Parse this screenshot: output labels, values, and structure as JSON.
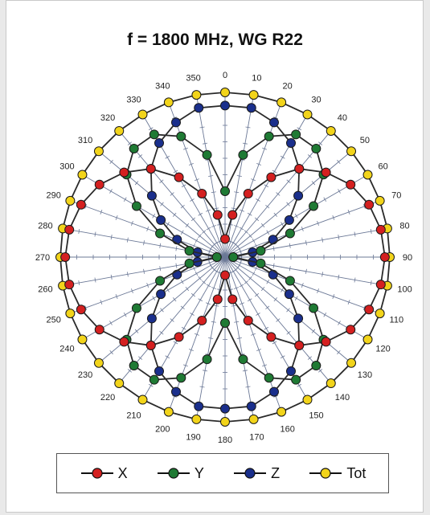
{
  "chart_data": {
    "type": "polar",
    "title": "f = 1800 MHz, WG R22",
    "angular_axis": {
      "unit": "degrees",
      "direction": "clockwise",
      "zero_at": "top",
      "tick_labels": [
        "0",
        "10",
        "20",
        "30",
        "40",
        "50",
        "60",
        "70",
        "80",
        "90",
        "100",
        "110",
        "120",
        "130",
        "140",
        "150",
        "160",
        "170",
        "180",
        "190",
        "200",
        "210",
        "220",
        "230",
        "240",
        "250",
        "260",
        "270",
        "280",
        "290",
        "300",
        "310",
        "320",
        "330",
        "340",
        "350"
      ]
    },
    "radial_grid": "on",
    "legend_position": "bottom",
    "series": [
      {
        "name": "X",
        "color": "#d42020",
        "angles": [
          0,
          10,
          20,
          30,
          40,
          50,
          60,
          70,
          80,
          90,
          100,
          110,
          120,
          130,
          140,
          150,
          160,
          170,
          180,
          190,
          200,
          210,
          220,
          230,
          240,
          250,
          260,
          270,
          280,
          290,
          300,
          310,
          320,
          330,
          340,
          350
        ],
        "values": [
          0.11,
          0.26,
          0.41,
          0.56,
          0.7,
          0.8,
          0.88,
          0.93,
          0.96,
          0.97,
          0.96,
          0.93,
          0.88,
          0.8,
          0.7,
          0.56,
          0.41,
          0.26,
          0.11,
          0.26,
          0.41,
          0.56,
          0.7,
          0.8,
          0.88,
          0.93,
          0.96,
          0.97,
          0.96,
          0.93,
          0.88,
          0.8,
          0.7,
          0.56,
          0.41,
          0.26
        ]
      },
      {
        "name": "Y",
        "color": "#1f7a34",
        "angles": [
          0,
          10,
          20,
          30,
          40,
          50,
          60,
          70,
          80,
          90,
          100,
          110,
          120,
          130,
          140,
          150,
          160,
          170,
          180,
          190,
          200,
          210,
          220,
          230,
          240,
          250,
          260,
          270,
          280,
          290,
          300,
          310,
          320,
          330,
          340,
          350
        ],
        "values": [
          0.4,
          0.63,
          0.78,
          0.86,
          0.86,
          0.78,
          0.62,
          0.42,
          0.22,
          0.05,
          0.22,
          0.42,
          0.62,
          0.78,
          0.86,
          0.86,
          0.78,
          0.63,
          0.4,
          0.63,
          0.78,
          0.86,
          0.86,
          0.78,
          0.62,
          0.42,
          0.22,
          0.05,
          0.22,
          0.42,
          0.62,
          0.78,
          0.86,
          0.86,
          0.78,
          0.63
        ]
      },
      {
        "name": "Z",
        "color": "#1a2f8c",
        "angles": [
          0,
          10,
          20,
          30,
          40,
          50,
          60,
          70,
          80,
          90,
          100,
          110,
          120,
          130,
          140,
          150,
          160,
          170,
          180,
          190,
          200,
          210,
          220,
          230,
          240,
          250,
          260,
          270,
          280,
          290,
          300,
          310,
          320,
          330,
          340,
          350
        ],
        "values": [
          0.92,
          0.92,
          0.87,
          0.8,
          0.7,
          0.58,
          0.45,
          0.31,
          0.17,
          0.05,
          0.17,
          0.31,
          0.45,
          0.58,
          0.7,
          0.8,
          0.87,
          0.92,
          0.92,
          0.92,
          0.87,
          0.8,
          0.7,
          0.58,
          0.45,
          0.31,
          0.17,
          0.05,
          0.17,
          0.31,
          0.45,
          0.58,
          0.7,
          0.8,
          0.87,
          0.92
        ]
      },
      {
        "name": "Tot",
        "color": "#f2d41a",
        "angles": [
          0,
          10,
          20,
          30,
          40,
          50,
          60,
          70,
          80,
          90,
          100,
          110,
          120,
          130,
          140,
          150,
          160,
          170,
          180,
          190,
          200,
          210,
          220,
          230,
          240,
          250,
          260,
          270,
          280,
          290,
          300,
          310,
          320,
          330,
          340,
          350
        ],
        "values": [
          1,
          1,
          1,
          1,
          1,
          1,
          1,
          1,
          1,
          1,
          1,
          1,
          1,
          1,
          1,
          1,
          1,
          1,
          1,
          1,
          1,
          1,
          1,
          1,
          1,
          1,
          1,
          1,
          1,
          1,
          1,
          1,
          1,
          1,
          1,
          1
        ]
      }
    ]
  }
}
